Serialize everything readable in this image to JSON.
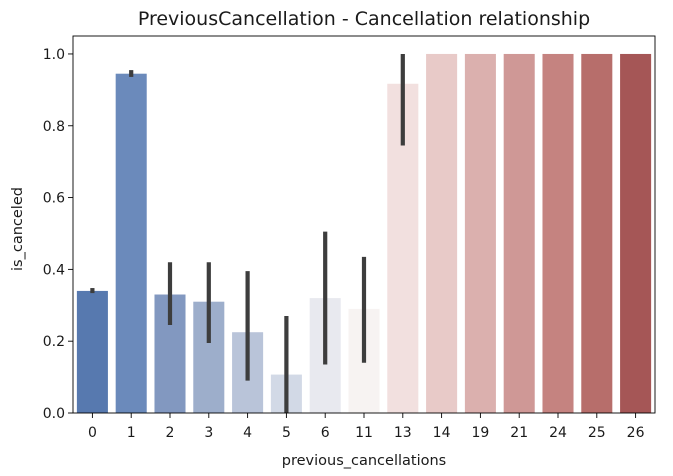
{
  "chart_data": {
    "type": "bar",
    "title": "PreviousCancellation - Cancellation relationship",
    "xlabel": "previous_cancellations",
    "ylabel": "is_canceled",
    "ylim": [
      0,
      1.05
    ],
    "yticks": [
      0.0,
      0.2,
      0.4,
      0.6,
      0.8,
      1.0
    ],
    "ytick_labels": [
      "0.0",
      "0.2",
      "0.4",
      "0.6",
      "0.8",
      "1.0"
    ],
    "grid": false,
    "categories": [
      "0",
      "1",
      "2",
      "3",
      "4",
      "5",
      "6",
      "11",
      "13",
      "14",
      "19",
      "21",
      "24",
      "25",
      "26"
    ],
    "values": [
      0.34,
      0.945,
      0.33,
      0.31,
      0.225,
      0.107,
      0.32,
      0.29,
      0.917,
      1.0,
      1.0,
      1.0,
      1.0,
      1.0,
      1.0
    ],
    "error_low": [
      0.334,
      0.936,
      0.245,
      0.195,
      0.09,
      0.0,
      0.135,
      0.14,
      0.745,
      1.0,
      1.0,
      1.0,
      1.0,
      1.0,
      1.0
    ],
    "error_high": [
      0.348,
      0.955,
      0.42,
      0.42,
      0.395,
      0.27,
      0.505,
      0.435,
      1.0,
      1.0,
      1.0,
      1.0,
      1.0,
      1.0,
      1.0
    ],
    "colors": [
      "#5779af",
      "#6b8abb",
      "#8298c0",
      "#9daecb",
      "#b9c4d9",
      "#d2d9e6",
      "#e8e9ef",
      "#f7f3f2",
      "#f2e0df",
      "#e8cac8",
      "#dbb0ae",
      "#cf9896",
      "#c58380",
      "#b76e6b",
      "#a55656"
    ]
  }
}
